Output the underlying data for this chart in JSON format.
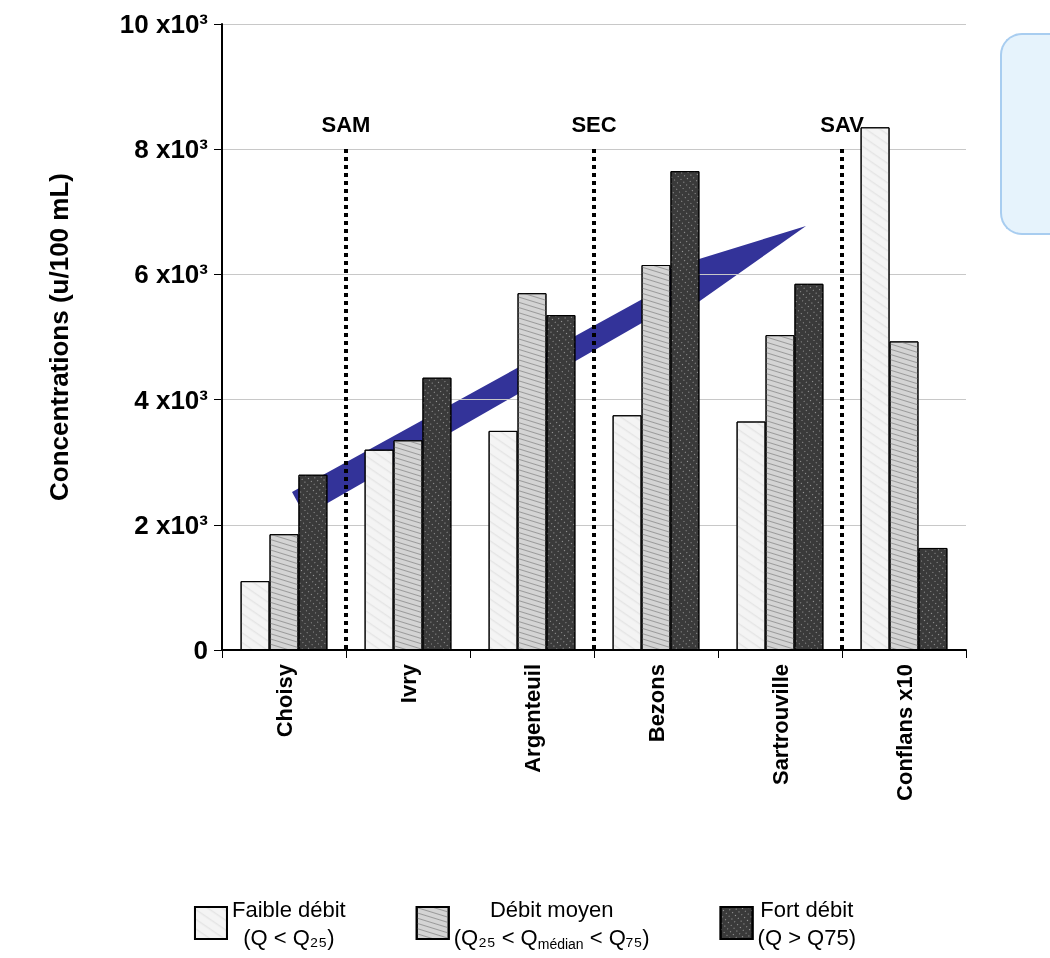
{
  "chart_data": {
    "type": "bar",
    "ylabel": "Concentrations (u/100 mL)",
    "categories": [
      "Choisy",
      "Ivry",
      "Argenteuil",
      "Bezons",
      "Sartrouville",
      "Conflans x10"
    ],
    "series": [
      {
        "name": "Faible débit\n(Q < Q₂₅)",
        "color": "#f4f4f4",
        "values": [
          1100,
          3200,
          3500,
          3750,
          3650,
          8350
        ]
      },
      {
        "name": "Débit moyen\n(Q₂₅ < Q$_{médian}$ < Q₇₅)",
        "color": "#d4d4d4",
        "values": [
          1850,
          3350,
          5700,
          6150,
          5030,
          4930
        ]
      },
      {
        "name": "Fort débit\n(Q > Q75)",
        "color": "#3a3a3a",
        "values": [
          2800,
          4350,
          5350,
          7650,
          5850,
          1630
        ]
      }
    ],
    "ylim": [
      0,
      10000
    ],
    "yticks": [
      {
        "value": 0,
        "label": "0"
      },
      {
        "value": 2000,
        "label": "2 x10³"
      },
      {
        "value": 4000,
        "label": "4 x10³"
      },
      {
        "value": 6000,
        "label": "6 x10³"
      },
      {
        "value": 8000,
        "label": "8 x10³"
      },
      {
        "value": 10000,
        "label": "10 x10³"
      }
    ],
    "annotations": [
      "SAM",
      "SEC",
      "SAV"
    ],
    "grid": "y",
    "legend": "bottom"
  }
}
